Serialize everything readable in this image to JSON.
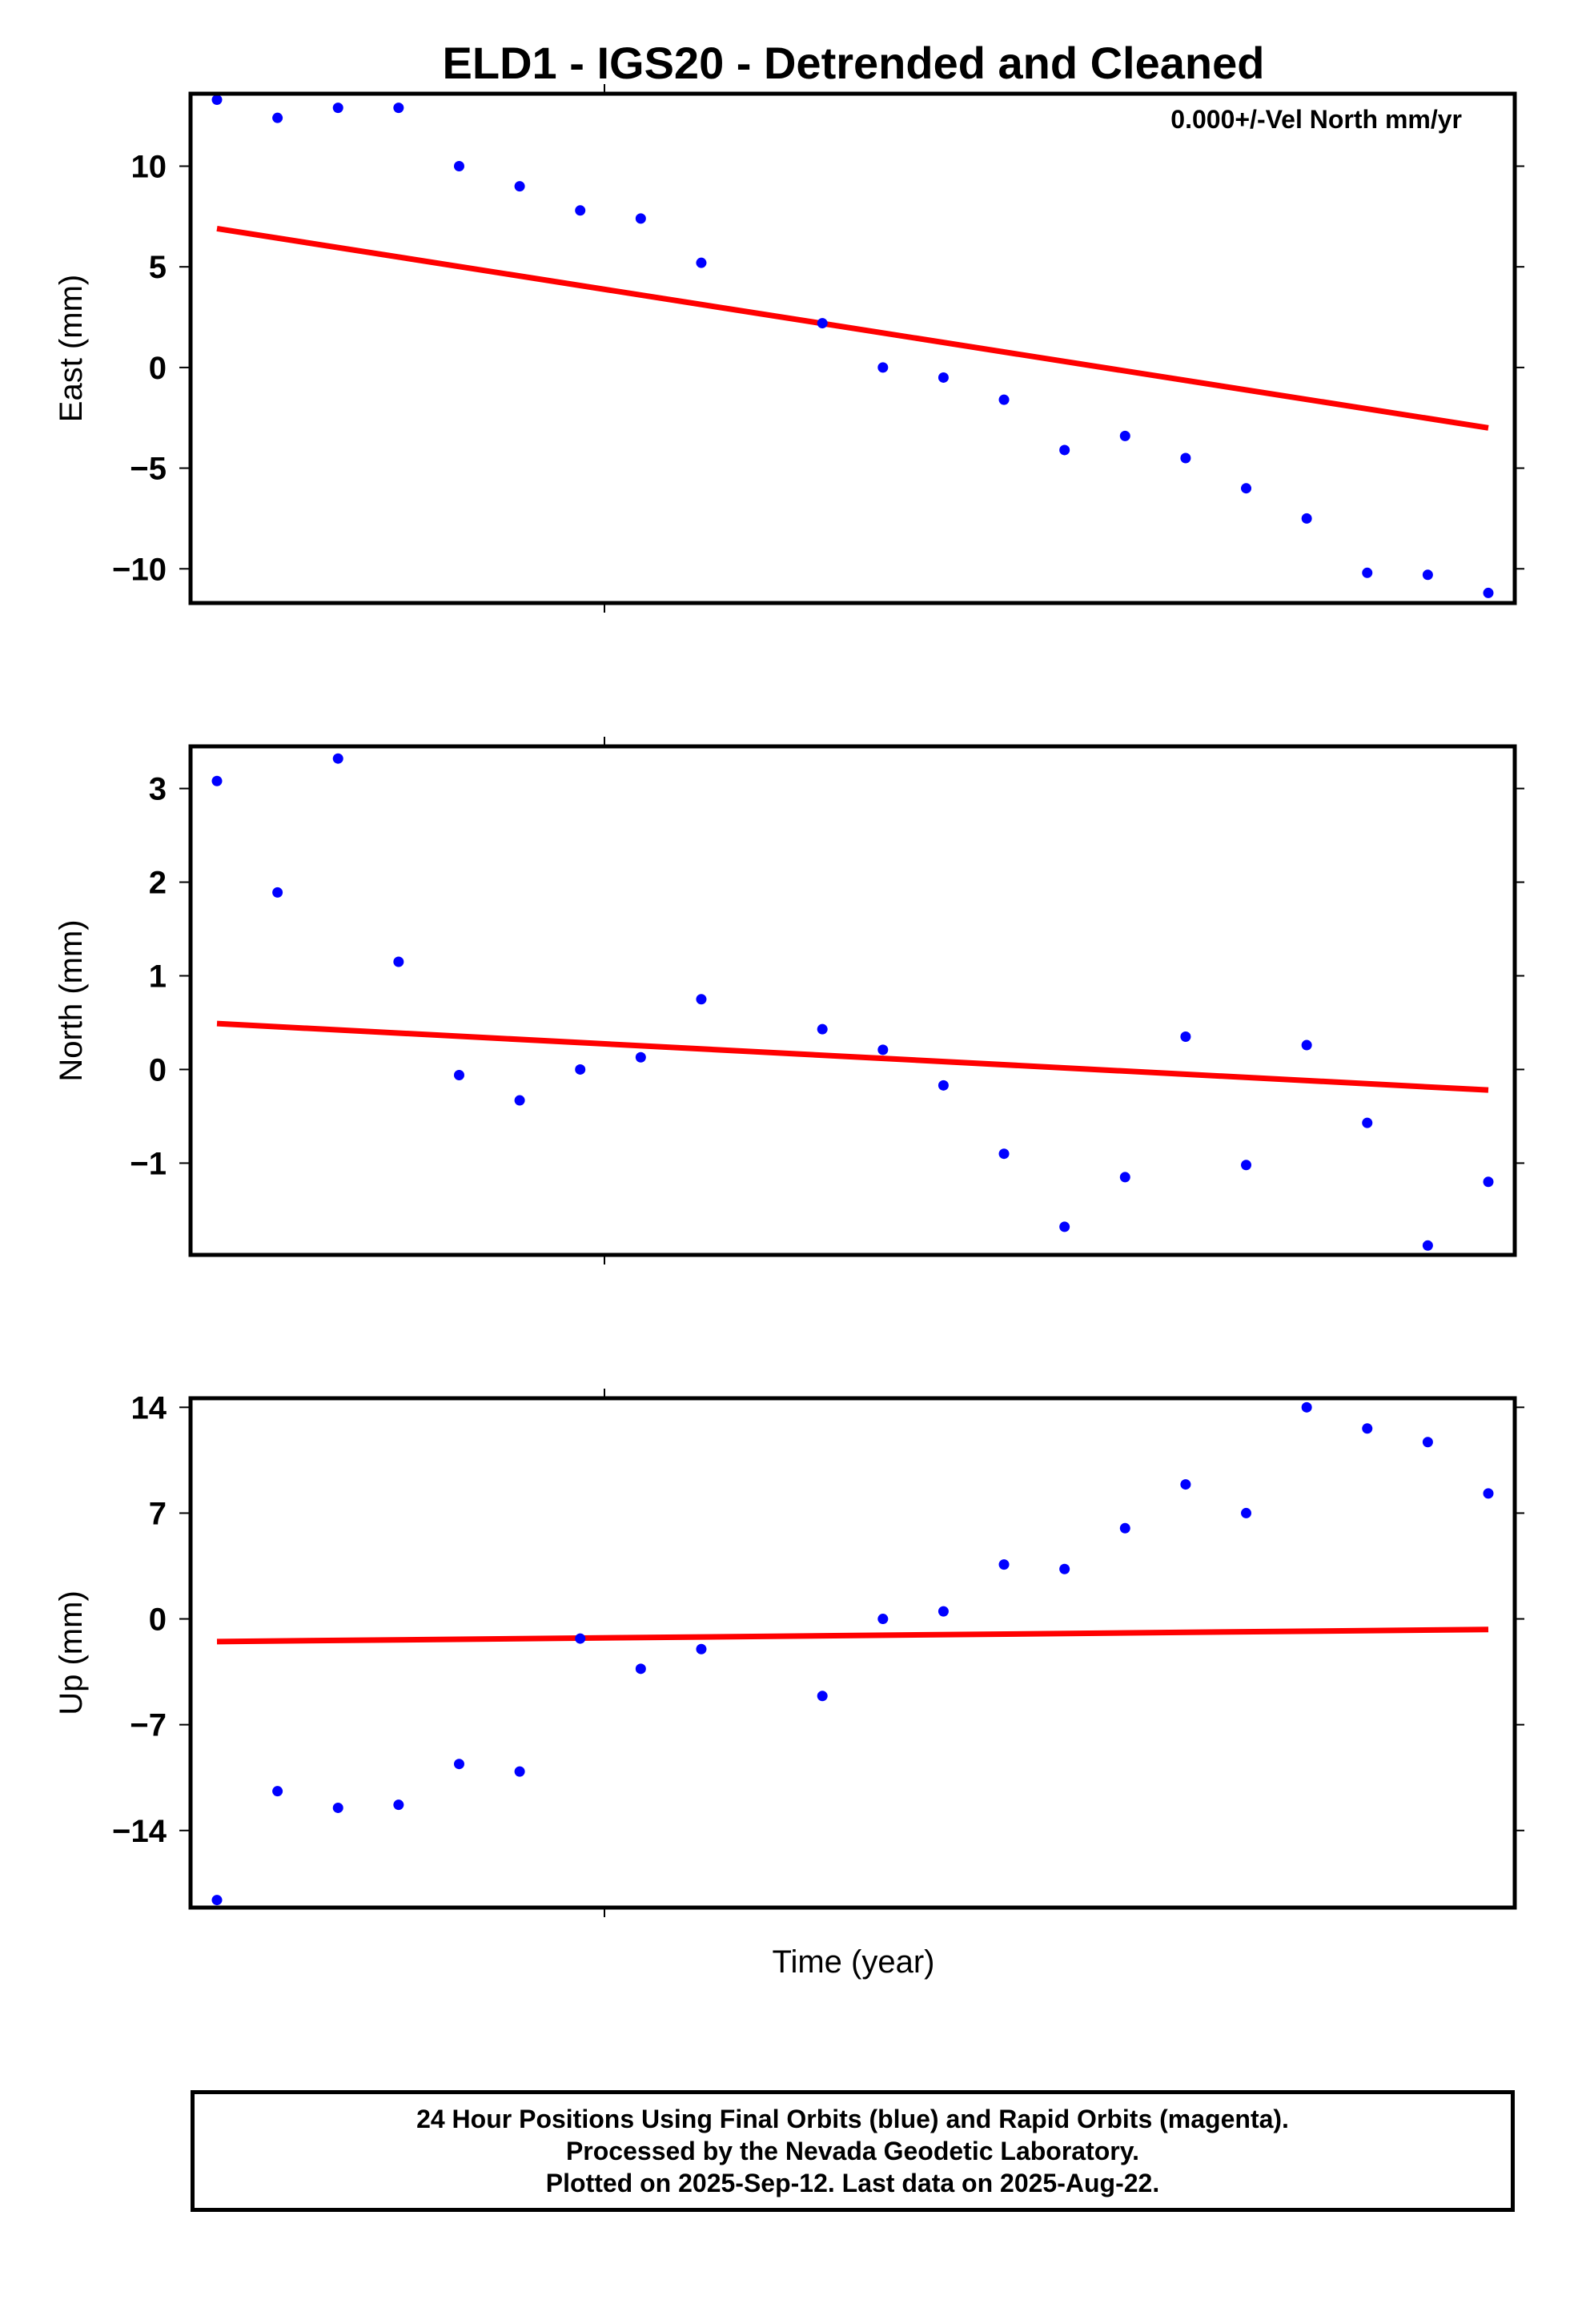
{
  "figure": {
    "title": "ELD1 - IGS20 - Detrended and Cleaned",
    "annotation": "0.000+/-Vel North mm/yr",
    "xlabel": "Time (year)"
  },
  "colors": {
    "points": "#0000ff",
    "trend": "#ff0000",
    "frame": "#000000"
  },
  "chart_data": [
    {
      "type": "scatter",
      "name": "East",
      "ylabel": "East (mm)",
      "ylim": [
        -11.7,
        13.6
      ],
      "yticks": [
        10,
        5,
        0,
        -5,
        -10
      ],
      "ytick_labels": [
        "10",
        "5",
        "0",
        "−5",
        "−10"
      ],
      "grid": false,
      "series": [
        {
          "name": "24 Hour Positions (Final Orbits)",
          "x": [
            1,
            2,
            3,
            4,
            5,
            6,
            7,
            8,
            9,
            11,
            12,
            13,
            14,
            15,
            16,
            17,
            18,
            19,
            20,
            21,
            22
          ],
          "y": [
            13.3,
            12.4,
            12.9,
            12.9,
            10.0,
            9.0,
            7.8,
            7.4,
            5.2,
            2.2,
            0.0,
            -0.5,
            -1.6,
            -4.1,
            -3.4,
            -4.5,
            -6.0,
            -7.5,
            -10.2,
            -10.3,
            -11.2
          ]
        }
      ],
      "trend": {
        "x": [
          1,
          22
        ],
        "y": [
          6.9,
          -3.0
        ]
      }
    },
    {
      "type": "scatter",
      "name": "North",
      "ylabel": "North (mm)",
      "ylim": [
        -1.98,
        3.45
      ],
      "yticks": [
        3,
        2,
        1,
        0,
        -1
      ],
      "ytick_labels": [
        "3",
        "2",
        "1",
        "0",
        "−1"
      ],
      "grid": false,
      "series": [
        {
          "name": "24 Hour Positions (Final Orbits)",
          "x": [
            1,
            2,
            3,
            4,
            5,
            6,
            7,
            8,
            9,
            11,
            12,
            13,
            14,
            15,
            16,
            17,
            18,
            19,
            20,
            21,
            22
          ],
          "y": [
            3.08,
            1.89,
            3.32,
            1.15,
            -0.06,
            -0.33,
            0.0,
            0.13,
            0.75,
            0.43,
            0.21,
            -0.17,
            -0.9,
            -1.68,
            -1.15,
            0.35,
            -1.02,
            0.26,
            -0.57,
            -1.88,
            -1.2
          ]
        }
      ],
      "trend": {
        "x": [
          1,
          22
        ],
        "y": [
          0.49,
          -0.22
        ]
      }
    },
    {
      "type": "scatter",
      "name": "Up",
      "ylabel": "Up (mm)",
      "ylim": [
        -19.1,
        14.6
      ],
      "yticks": [
        14,
        7,
        0,
        -7,
        -14
      ],
      "ytick_labels": [
        "14",
        "7",
        "0",
        "−7",
        "−14"
      ],
      "grid": false,
      "series": [
        {
          "name": "24 Hour Positions (Final Orbits)",
          "x": [
            1,
            2,
            3,
            4,
            5,
            6,
            7,
            8,
            9,
            11,
            12,
            13,
            14,
            15,
            16,
            17,
            18,
            19,
            20,
            21,
            22
          ],
          "y": [
            -18.6,
            -11.4,
            -12.5,
            -12.3,
            -9.6,
            -10.1,
            -1.3,
            -3.3,
            -2.0,
            -5.1,
            0.0,
            0.5,
            3.6,
            3.3,
            6.0,
            8.9,
            7.0,
            14.0,
            12.6,
            11.7,
            8.3
          ]
        }
      ],
      "trend": {
        "x": [
          1,
          22
        ],
        "y": [
          -1.5,
          -0.7
        ]
      }
    }
  ],
  "footer": {
    "line1": "24 Hour Positions Using Final Orbits (blue) and Rapid Orbits (magenta).",
    "line2": "Processed by the Nevada Geodetic Laboratory.",
    "line3": "Plotted on 2025-Sep-12. Last data on 2025-Aug-22."
  }
}
